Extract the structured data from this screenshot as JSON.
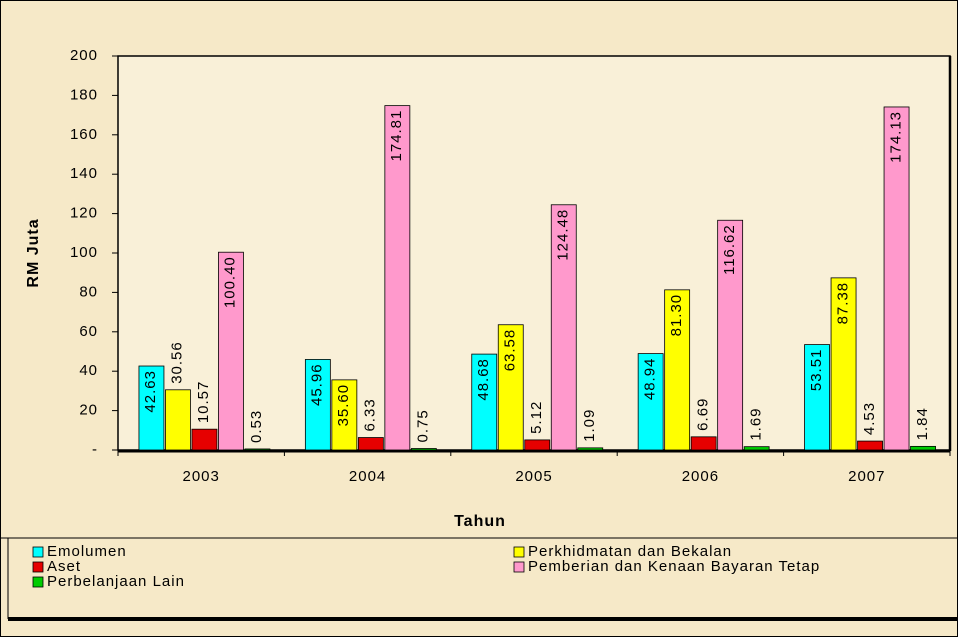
{
  "chart_data": {
    "type": "bar",
    "x_label": "Tahun",
    "y_label": "RM Juta",
    "categories": [
      "2003",
      "2004",
      "2005",
      "2006",
      "2007"
    ],
    "series": [
      {
        "name": "Emolumen",
        "color": "#00ffff",
        "values": [
          42.63,
          45.96,
          48.68,
          48.94,
          53.51
        ],
        "value_labels": [
          "42.63",
          "45.96",
          "48.68",
          "48.94",
          "53.51"
        ]
      },
      {
        "name": "Perkhidmatan dan Bekalan",
        "color": "#ffff00",
        "values": [
          30.56,
          35.6,
          63.58,
          81.3,
          87.38
        ],
        "value_labels": [
          "30.56",
          "35.60",
          "63.58",
          "81.30",
          "87.38"
        ]
      },
      {
        "name": "Aset",
        "color": "#e60000",
        "values": [
          10.57,
          6.33,
          5.12,
          6.69,
          4.53
        ],
        "value_labels": [
          "10.57",
          "6.33",
          "5.12",
          "6.69",
          "4.53"
        ]
      },
      {
        "name": "Pemberian dan Kenaan Bayaran Tetap",
        "color": "#ff99cc",
        "values": [
          100.4,
          174.81,
          124.48,
          116.62,
          174.13
        ],
        "value_labels": [
          "100.40",
          "174.81",
          "124.48",
          "116.62",
          "174.13"
        ]
      },
      {
        "name": "Perbelanjaan Lain",
        "color": "#00cc00",
        "values": [
          0.53,
          0.75,
          1.09,
          1.69,
          1.84
        ],
        "value_labels": [
          "0.53",
          "0.75",
          "1.09",
          "1.69",
          "1.84"
        ]
      }
    ],
    "ylim": [
      0,
      200
    ],
    "yticks": [
      {
        "value": 0,
        "label": "-"
      },
      20,
      40,
      60,
      80,
      100,
      120,
      140,
      160,
      180,
      200
    ],
    "grid": false
  }
}
